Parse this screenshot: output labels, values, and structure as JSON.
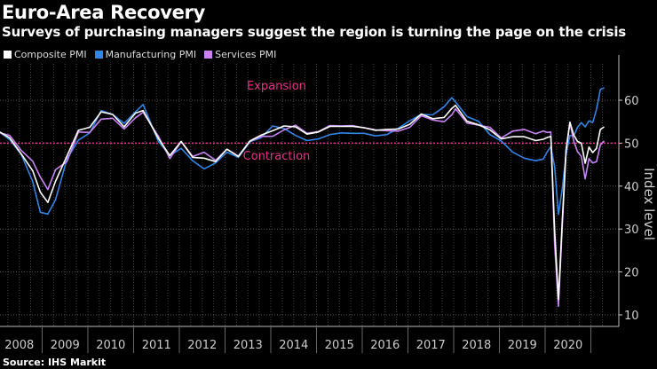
{
  "title": "Euro-Area Recovery",
  "subtitle": "Surveys of purchasing managers suggest the region is turning the page on the crisis",
  "source": "Source: IHS Markit",
  "chart_data": {
    "type": "line",
    "ylabel": "Index level",
    "ylim": [
      7,
      68
    ],
    "yticks": [
      10,
      20,
      30,
      40,
      50,
      60
    ],
    "xtick_labels": [
      "2008",
      "2009",
      "2010",
      "2011",
      "2012",
      "2013",
      "2014",
      "2015",
      "2016",
      "2017",
      "2018",
      "2019",
      "2020"
    ],
    "grid": true,
    "legend_position": "top-left",
    "reference_line": {
      "value": 50,
      "color": "#e8308a"
    },
    "annotations": [
      {
        "text": "Expansion",
        "x": "2014-02",
        "y": 62.5,
        "color": "#e8308a"
      },
      {
        "text": "Contraction",
        "x": "2014-02",
        "y": 46.2,
        "color": "#e8308a"
      }
    ],
    "x": [
      "2008-01",
      "2008-04",
      "2008-07",
      "2008-10",
      "2008-12",
      "2009-02",
      "2009-04",
      "2009-07",
      "2009-10",
      "2010-01",
      "2010-04",
      "2010-07",
      "2010-10",
      "2011-01",
      "2011-03",
      "2011-07",
      "2011-10",
      "2012-01",
      "2012-04",
      "2012-07",
      "2012-10",
      "2013-01",
      "2013-04",
      "2013-07",
      "2013-10",
      "2014-01",
      "2014-04",
      "2014-07",
      "2014-10",
      "2015-01",
      "2015-04",
      "2015-07",
      "2015-10",
      "2016-01",
      "2016-04",
      "2016-07",
      "2016-10",
      "2017-01",
      "2017-04",
      "2017-07",
      "2017-10",
      "2017-12",
      "2018-01",
      "2018-04",
      "2018-07",
      "2018-10",
      "2019-01",
      "2019-04",
      "2019-07",
      "2019-10",
      "2019-12",
      "2020-01",
      "2020-02",
      "2020-03",
      "2020-04",
      "2020-05",
      "2020-06",
      "2020-07",
      "2020-08",
      "2020-09",
      "2020-10",
      "2020-11",
      "2020-12",
      "2021-01",
      "2021-02",
      "2021-03",
      "2021-04"
    ],
    "series": [
      {
        "name": "Manufacturing PMI",
        "color": "#2f86e8",
        "values": [
          52.8,
          50.8,
          47.4,
          41.1,
          33.9,
          33.5,
          36.8,
          46.3,
          50.7,
          52.4,
          57.6,
          56.7,
          54.6,
          57.3,
          59.0,
          50.4,
          47.1,
          48.8,
          45.9,
          44.0,
          45.4,
          47.9,
          46.7,
          50.3,
          51.3,
          54.0,
          53.4,
          51.8,
          50.6,
          51.0,
          52.0,
          52.4,
          52.3,
          52.3,
          51.7,
          52.0,
          53.5,
          55.2,
          56.7,
          56.6,
          58.5,
          60.6,
          59.6,
          56.2,
          55.1,
          52.0,
          50.5,
          47.9,
          46.5,
          45.9,
          46.3,
          47.9,
          49.2,
          44.5,
          33.4,
          39.4,
          47.4,
          51.8,
          51.7,
          53.7,
          54.8,
          53.8,
          55.2,
          54.8,
          57.9,
          62.5,
          62.9
        ]
      },
      {
        "name": "Services PMI",
        "color": "#c983f5",
        "values": [
          52.5,
          51.8,
          48.3,
          45.8,
          42.1,
          39.2,
          43.8,
          45.7,
          52.6,
          52.5,
          55.6,
          55.8,
          53.3,
          55.9,
          57.2,
          51.6,
          46.4,
          50.4,
          46.9,
          47.9,
          46.0,
          48.6,
          47.0,
          50.4,
          51.6,
          51.6,
          53.1,
          54.2,
          52.3,
          52.7,
          54.1,
          54.0,
          54.1,
          53.6,
          53.1,
          52.9,
          52.8,
          53.7,
          56.4,
          55.4,
          55.0,
          56.6,
          58.0,
          54.7,
          54.2,
          53.7,
          51.2,
          52.8,
          53.2,
          52.2,
          52.8,
          52.5,
          52.6,
          26.4,
          12.0,
          30.5,
          48.3,
          54.7,
          50.5,
          48.0,
          46.9,
          41.7,
          46.4,
          45.4,
          45.7,
          49.6,
          50.5
        ]
      },
      {
        "name": "Composite PMI",
        "color": "#ffffff",
        "values": [
          52.8,
          51.2,
          47.5,
          43.6,
          38.6,
          36.2,
          41.1,
          47.0,
          53.0,
          53.7,
          57.3,
          56.7,
          53.8,
          57.0,
          57.6,
          51.1,
          47.1,
          50.4,
          46.7,
          46.5,
          45.7,
          48.6,
          46.9,
          50.5,
          51.9,
          52.9,
          54.0,
          53.8,
          52.1,
          52.6,
          53.9,
          53.9,
          53.9,
          53.6,
          53.0,
          53.2,
          53.3,
          54.4,
          56.8,
          55.7,
          56.0,
          58.1,
          58.8,
          55.1,
          54.3,
          53.1,
          51.0,
          51.5,
          51.5,
          50.6,
          50.9,
          51.3,
          51.6,
          29.7,
          13.6,
          31.9,
          48.5,
          54.9,
          51.9,
          50.4,
          50.0,
          45.3,
          49.1,
          47.8,
          48.8,
          53.2,
          53.8
        ]
      }
    ]
  }
}
